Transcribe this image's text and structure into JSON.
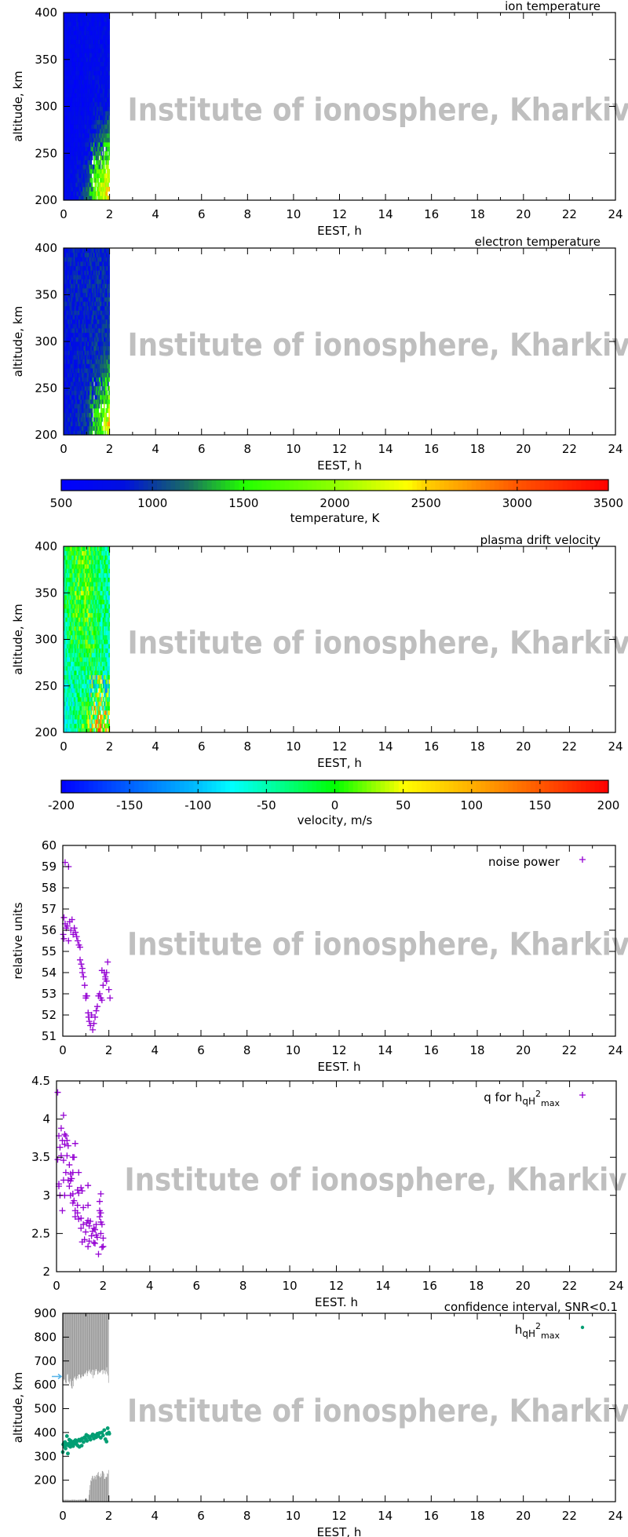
{
  "watermark": "Institute of ionosphere, Kharkiv",
  "chart_data": [
    {
      "type": "heatmap",
      "title": "ion temperature",
      "xlabel": "EEST, h",
      "ylabel": "altitude, km",
      "xlim": [
        0,
        24
      ],
      "ylim": [
        200,
        400
      ],
      "xtick_labels": [
        "0",
        "2",
        "4",
        "6",
        "8",
        "10",
        "12",
        "14",
        "16",
        "18",
        "20",
        "22",
        "24"
      ],
      "ytick_labels": [
        "200",
        "250",
        "300",
        "350",
        "400"
      ],
      "data_x_extent": [
        0,
        2
      ],
      "grid_x": [
        0,
        0.5,
        1,
        1.5,
        2
      ],
      "grid_altitudes": [
        210,
        250,
        300,
        350,
        400
      ],
      "values_K": [
        [
          700,
          800,
          1100,
          2000,
          2500
        ],
        [
          650,
          700,
          800,
          1200,
          1600
        ],
        [
          650,
          700,
          700,
          800,
          800
        ],
        [
          700,
          700,
          750,
          750,
          750
        ],
        [
          700,
          750,
          750,
          700,
          750
        ]
      ],
      "colorbar_ref": "temperature"
    },
    {
      "type": "heatmap",
      "title": "electron temperature",
      "xlabel": "EEST, h",
      "ylabel": "altitude, km",
      "xlim": [
        0,
        24
      ],
      "ylim": [
        200,
        400
      ],
      "xtick_labels": [
        "0",
        "2",
        "4",
        "6",
        "8",
        "10",
        "12",
        "14",
        "16",
        "18",
        "20",
        "22",
        "24"
      ],
      "ytick_labels": [
        "200",
        "250",
        "300",
        "350",
        "400"
      ],
      "data_x_extent": [
        0,
        2
      ],
      "grid_x": [
        0,
        0.5,
        1,
        1.5,
        2
      ],
      "grid_altitudes": [
        210,
        250,
        300,
        350,
        400
      ],
      "values_K": [
        [
          800,
          900,
          1000,
          1500,
          2500
        ],
        [
          750,
          850,
          950,
          1100,
          1400
        ],
        [
          800,
          850,
          900,
          950,
          1000
        ],
        [
          850,
          880,
          900,
          950,
          950
        ],
        [
          850,
          900,
          900,
          950,
          900
        ]
      ],
      "colorbar_ref": "temperature"
    },
    {
      "type": "heatmap",
      "title": "plasma drift velocity",
      "xlabel": "EEST, h",
      "ylabel": "altitude, km",
      "xlim": [
        0,
        24
      ],
      "ylim": [
        200,
        400
      ],
      "xtick_labels": [
        "0",
        "2",
        "4",
        "6",
        "8",
        "10",
        "12",
        "14",
        "16",
        "18",
        "20",
        "22",
        "24"
      ],
      "ytick_labels": [
        "200",
        "250",
        "300",
        "350",
        "400"
      ],
      "data_x_extent": [
        0,
        2
      ],
      "grid_x": [
        0,
        0.5,
        1,
        1.5,
        2
      ],
      "grid_altitudes": [
        210,
        250,
        300,
        350,
        400
      ],
      "values_ms": [
        [
          -70,
          -40,
          20,
          60,
          30
        ],
        [
          -60,
          -50,
          -40,
          -20,
          -60
        ],
        [
          -40,
          -10,
          0,
          -30,
          -50
        ],
        [
          -30,
          -5,
          5,
          -25,
          -45
        ],
        [
          -30,
          0,
          10,
          -20,
          -40
        ]
      ],
      "colorbar_ref": "velocity"
    },
    {
      "type": "scatter",
      "xlabel": "EEST. h",
      "ylabel": "relative units",
      "xlim": [
        0,
        24
      ],
      "ylim": [
        51,
        60
      ],
      "xtick_labels": [
        "0",
        "2",
        "4",
        "6",
        "8",
        "10",
        "12",
        "14",
        "16",
        "18",
        "20",
        "22",
        "24"
      ],
      "ytick_labels": [
        "51",
        "52",
        "53",
        "54",
        "55",
        "56",
        "57",
        "58",
        "59",
        "60"
      ],
      "series": [
        {
          "name": "noise power",
          "color": "#9400d3",
          "marker": "plus",
          "x": [
            0.1,
            0.25,
            0.05,
            0.02,
            0.05,
            0.1,
            0.15,
            0.2,
            0.25,
            0.3,
            0.35,
            0.4,
            0.45,
            0.5,
            0.55,
            0.6,
            0.65,
            0.7,
            0.75,
            0.75,
            0.8,
            0.85,
            0.85,
            0.9,
            0.95,
            1.0,
            1.0,
            1.05,
            1.1,
            1.12,
            1.15,
            1.2,
            1.25,
            1.3,
            1.35,
            1.4,
            1.45,
            1.5,
            1.55,
            1.6,
            1.65,
            1.7,
            1.75,
            1.8,
            1.85,
            1.9,
            1.95,
            2.0,
            2.05,
            1.7,
            1.9,
            1.85
          ],
          "y": [
            59.2,
            59.0,
            56.6,
            55.8,
            55.6,
            56.3,
            56.1,
            56.2,
            55.5,
            56.4,
            56.0,
            56.5,
            55.8,
            56.1,
            55.9,
            55.7,
            55.5,
            55.3,
            55.2,
            54.6,
            54.4,
            54.2,
            54.0,
            53.8,
            53.4,
            52.9,
            52.8,
            52.9,
            52.1,
            51.9,
            51.7,
            51.5,
            52.0,
            51.3,
            51.6,
            51.9,
            52.2,
            52.4,
            52.9,
            53.0,
            52.8,
            52.7,
            53.4,
            54.0,
            53.8,
            53.6,
            54.5,
            53.2,
            52.8,
            54.1,
            54.0,
            53.7
          ]
        }
      ]
    },
    {
      "type": "scatter",
      "xlabel": "EEST. h",
      "ylabel": "",
      "xlim": [
        0,
        24
      ],
      "ylim": [
        2,
        4.5
      ],
      "xtick_labels": [
        "0",
        "2",
        "4",
        "6",
        "8",
        "10",
        "12",
        "14",
        "16",
        "18",
        "20",
        "22",
        "24"
      ],
      "ytick_labels": [
        "2",
        "2.5",
        "3",
        "3.5",
        "4",
        "4.5"
      ],
      "series": [
        {
          "name": "q for h",
          "name_sub": "qH",
          "name_sup": "2",
          "name_sub2": "max",
          "color": "#9400d3",
          "marker": "plus",
          "x": [
            0.05,
            0.3,
            0.2,
            0.1,
            0.35,
            0.4,
            0.25,
            0.45,
            0.15,
            0.35,
            0.5,
            0.8,
            0.2,
            0.45,
            0.7,
            0.75,
            0.05,
            0.3,
            0.55,
            0.4,
            0.6,
            0.7,
            0.95,
            0.65,
            0.3,
            0.5,
            0.6,
            0.55,
            0.1,
            0.1,
            1.35,
            0.9,
            1.05,
            1.1,
            0.95,
            0.15,
            0.35,
            0.6,
            0.7,
            1.9,
            0.75,
            0.7,
            1.85,
            0.9,
            1.35,
            1.15,
            0.25,
            0.8,
            1.85,
            0.9,
            1.9,
            0.8,
            1.85,
            0.95,
            1.05,
            1.35,
            1.45,
            1.3,
            1.95,
            1.15,
            1.7,
            1.9,
            1.05,
            1.6,
            1.4,
            1.55,
            1.25,
            1.65,
            1.9,
            1.5,
            1.7,
            1.75,
            2.0,
            1.1,
            1.2,
            1.4,
            1.6,
            1.65,
            1.35,
            1.95,
            2.0,
            1.8
          ],
          "y": [
            4.35,
            4.05,
            3.88,
            3.78,
            3.8,
            3.78,
            3.72,
            3.72,
            3.63,
            3.67,
            3.65,
            3.68,
            3.52,
            3.52,
            3.5,
            3.5,
            3.47,
            3.46,
            3.4,
            3.3,
            3.28,
            3.3,
            3.3,
            3.22,
            3.2,
            3.2,
            3.19,
            3.12,
            3.15,
            3.12,
            3.13,
            3.07,
            3.1,
            3.06,
            3.03,
            3.0,
            3.0,
            3.0,
            3.02,
            3.02,
            2.93,
            2.9,
            2.92,
            2.87,
            2.87,
            2.84,
            2.8,
            2.8,
            2.8,
            2.77,
            2.77,
            2.72,
            2.72,
            2.69,
            2.7,
            2.67,
            2.66,
            2.64,
            2.62,
            2.62,
            2.62,
            2.65,
            2.57,
            2.57,
            2.6,
            2.53,
            2.52,
            2.55,
            2.5,
            2.47,
            2.48,
            2.45,
            2.44,
            2.39,
            2.42,
            2.4,
            2.38,
            2.37,
            2.33,
            2.32,
            2.33,
            2.23
          ]
        }
      ]
    },
    {
      "type": "scatter",
      "title": "confidence interval, SNR<0.1",
      "xlabel": "EEST, h",
      "ylabel": "altitude, km",
      "xlim": [
        0,
        24
      ],
      "ylim": [
        110,
        900
      ],
      "xtick_labels": [
        "0",
        "2",
        "4",
        "6",
        "8",
        "10",
        "12",
        "14",
        "16",
        "18",
        "20",
        "22",
        "24"
      ],
      "ytick_labels": [
        "200",
        "300",
        "400",
        "500",
        "600",
        "700",
        "800",
        "900"
      ],
      "left_arrow_value": 635,
      "left_arrow_color": "#56b4e9",
      "confidence_band": {
        "color": "#888888",
        "x": [
          0,
          0.1,
          0.2,
          0.3,
          0.4,
          0.5,
          0.6,
          0.7,
          0.8,
          0.9,
          1.0,
          1.1,
          1.2,
          1.3,
          1.4,
          1.5,
          1.6,
          1.7,
          1.8,
          1.9,
          2.0
        ],
        "upper_band_bottom": [
          620,
          605,
          630,
          615,
          600,
          620,
          610,
          640,
          630,
          645,
          650,
          640,
          660,
          645,
          655,
          650,
          640,
          660,
          650,
          670,
          590
        ],
        "lower_band_top": [
          118,
          118,
          118,
          117,
          118,
          118,
          117,
          118,
          118,
          118,
          118,
          118,
          200,
          215,
          210,
          225,
          220,
          230,
          215,
          225,
          235
        ]
      },
      "series": [
        {
          "name": "h",
          "name_sub": "qH",
          "name_sup": "2",
          "name_sub2": "max",
          "color": "#009e73",
          "marker": "dot",
          "x": [
            0.0,
            0.02,
            0.05,
            0.08,
            0.1,
            0.12,
            0.15,
            0.18,
            0.2,
            0.22,
            0.25,
            0.28,
            0.3,
            0.33,
            0.35,
            0.4,
            0.42,
            0.45,
            0.48,
            0.5,
            0.55,
            0.58,
            0.6,
            0.65,
            0.7,
            0.72,
            0.75,
            0.8,
            0.82,
            0.85,
            0.9,
            0.95,
            1.0,
            1.02,
            1.05,
            1.1,
            1.15,
            1.2,
            1.25,
            1.3,
            1.35,
            1.4,
            1.45,
            1.5,
            1.55,
            1.6,
            1.65,
            1.7,
            1.75,
            1.8,
            1.85,
            1.9,
            1.92,
            1.95,
            2.0,
            2.02
          ],
          "y": [
            318,
            350,
            355,
            340,
            360,
            333,
            348,
            385,
            352,
            312,
            345,
            370,
            355,
            340,
            365,
            350,
            358,
            343,
            362,
            355,
            368,
            352,
            360,
            345,
            370,
            340,
            365,
            372,
            345,
            375,
            360,
            380,
            372,
            390,
            365,
            385,
            378,
            370,
            385,
            392,
            375,
            388,
            380,
            395,
            385,
            398,
            378,
            400,
            388,
            410,
            372,
            362,
            395,
            418,
            400,
            395
          ]
        }
      ]
    }
  ],
  "colorbars": {
    "temperature": {
      "label": "temperature, K",
      "range": [
        500,
        3500
      ],
      "tick_labels": [
        "500",
        "1000",
        "1500",
        "2000",
        "2500",
        "3000",
        "3500"
      ],
      "palette": [
        [
          500,
          "#0000ff"
        ],
        [
          850,
          "#0010e0"
        ],
        [
          1000,
          "#0a3aa0"
        ],
        [
          1200,
          "#1a7060"
        ],
        [
          1500,
          "#22ff00"
        ],
        [
          2000,
          "#90ff00"
        ],
        [
          2400,
          "#ffff00"
        ],
        [
          2500,
          "#ffd000"
        ],
        [
          3000,
          "#ff5500"
        ],
        [
          3500,
          "#ff0000"
        ]
      ]
    },
    "velocity": {
      "label": "velocity, m/s",
      "range": [
        -200,
        200
      ],
      "tick_labels": [
        "-200",
        "-150",
        "-100",
        "-50",
        "0",
        "50",
        "100",
        "150",
        "200"
      ],
      "palette": [
        [
          -200,
          "#0000ff"
        ],
        [
          -150,
          "#0060ff"
        ],
        [
          -100,
          "#00c0ff"
        ],
        [
          -75,
          "#00ffff"
        ],
        [
          -40,
          "#00ff90"
        ],
        [
          0,
          "#00ff00"
        ],
        [
          50,
          "#ffff00"
        ],
        [
          100,
          "#ffb000"
        ],
        [
          200,
          "#ff0000"
        ]
      ]
    }
  }
}
